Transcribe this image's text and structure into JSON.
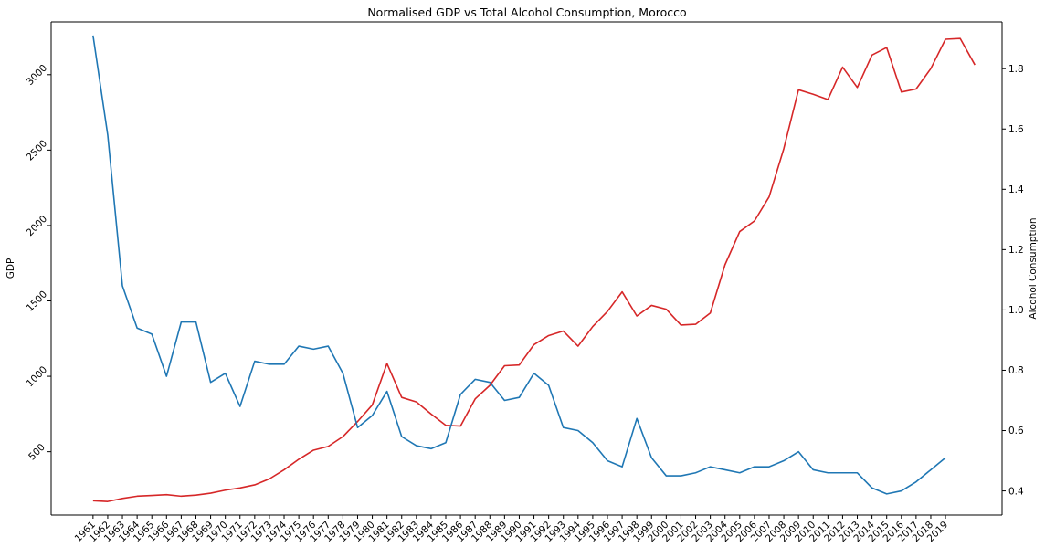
{
  "chart_data": {
    "type": "line",
    "title": "Normalised GDP vs Total Alcohol Consumption, Morocco",
    "x_tick_labels": [
      "1961",
      "1962",
      "1963",
      "1964",
      "1965",
      "1966",
      "1967",
      "1968",
      "1969",
      "1970",
      "1971",
      "1972",
      "1973",
      "1974",
      "1975",
      "1976",
      "1977",
      "1978",
      "1979",
      "1980",
      "1981",
      "1982",
      "1983",
      "1984",
      "1985",
      "1986",
      "1987",
      "1988",
      "1989",
      "1990",
      "1991",
      "1992",
      "1993",
      "1994",
      "1995",
      "1996",
      "1997",
      "1998",
      "1999",
      "2000",
      "2001",
      "2002",
      "2003",
      "2004",
      "2005",
      "2006",
      "2007",
      "2008",
      "2009",
      "2010",
      "2011",
      "2012",
      "2013",
      "2014",
      "2015",
      "2016",
      "2017",
      "2018",
      "2019"
    ],
    "left_axis": {
      "label": "GDP",
      "color": "#d62728",
      "ticks": [
        500,
        1000,
        1500,
        2000,
        2500,
        3000
      ],
      "ylim": [
        80,
        3350
      ]
    },
    "right_axis": {
      "label": "Alcohol Consumption",
      "color": "#1f77b4",
      "ticks": [
        0.4,
        0.6,
        0.8,
        1.0,
        1.2,
        1.4,
        1.6,
        1.8
      ],
      "ylim": [
        0.32,
        1.955
      ]
    },
    "series": [
      {
        "axis": "left",
        "color": "#d62728",
        "x": [
          1961,
          1962,
          1963,
          1964,
          1965,
          1966,
          1967,
          1968,
          1969,
          1970,
          1971,
          1972,
          1973,
          1974,
          1975,
          1976,
          1977,
          1978,
          1979,
          1980,
          1981,
          1982,
          1983,
          1984,
          1985,
          1986,
          1987,
          1988,
          1989,
          1990,
          1991,
          1992,
          1993,
          1994,
          1995,
          1996,
          1997,
          1998,
          1999,
          2000,
          2001,
          2002,
          2003,
          2004,
          2005,
          2006,
          2007,
          2008,
          2009,
          2010,
          2011,
          2012,
          2013,
          2014,
          2015,
          2016,
          2017,
          2018,
          2019,
          2020,
          2021
        ],
        "values": [
          175,
          170,
          190,
          205,
          210,
          215,
          205,
          212,
          225,
          245,
          260,
          280,
          320,
          380,
          450,
          510,
          535,
          600,
          700,
          810,
          1085,
          860,
          830,
          750,
          675,
          670,
          850,
          940,
          1070,
          1075,
          1210,
          1270,
          1300,
          1200,
          1330,
          1430,
          1560,
          1400,
          1470,
          1445,
          1340,
          1345,
          1420,
          1740,
          1960,
          2030,
          2190,
          2510,
          2900,
          2870,
          2835,
          3050,
          2915,
          3130,
          3180,
          2885,
          2905,
          3040,
          3235,
          3240,
          3065
        ]
      },
      {
        "axis": "right",
        "color": "#1f77b4",
        "x": [
          1961,
          1962,
          1963,
          1964,
          1965,
          1966,
          1967,
          1968,
          1969,
          1970,
          1971,
          1972,
          1973,
          1974,
          1975,
          1976,
          1977,
          1978,
          1979,
          1980,
          1981,
          1982,
          1983,
          1984,
          1985,
          1986,
          1987,
          1988,
          1989,
          1990,
          1991,
          1992,
          1993,
          1994,
          1995,
          1996,
          1997,
          1998,
          1999,
          2000,
          2001,
          2002,
          2003,
          2004,
          2005,
          2006,
          2007,
          2008,
          2009,
          2010,
          2011,
          2012,
          2013,
          2014,
          2015,
          2016,
          2017,
          2018,
          2019
        ],
        "values": [
          1.91,
          1.58,
          1.08,
          0.94,
          0.92,
          0.78,
          0.96,
          0.96,
          0.76,
          0.79,
          0.68,
          0.83,
          0.82,
          0.82,
          0.88,
          0.87,
          0.88,
          0.79,
          0.61,
          0.65,
          0.73,
          0.58,
          0.55,
          0.54,
          0.56,
          0.72,
          0.77,
          0.76,
          0.7,
          0.71,
          0.79,
          0.75,
          0.61,
          0.6,
          0.56,
          0.5,
          0.48,
          0.64,
          0.51,
          0.45,
          0.45,
          0.46,
          0.48,
          0.47,
          0.46,
          0.48,
          0.48,
          0.5,
          0.53,
          0.47,
          0.46,
          0.46,
          0.46,
          0.41,
          0.39,
          0.4,
          0.43,
          0.47,
          0.51
        ]
      }
    ]
  }
}
